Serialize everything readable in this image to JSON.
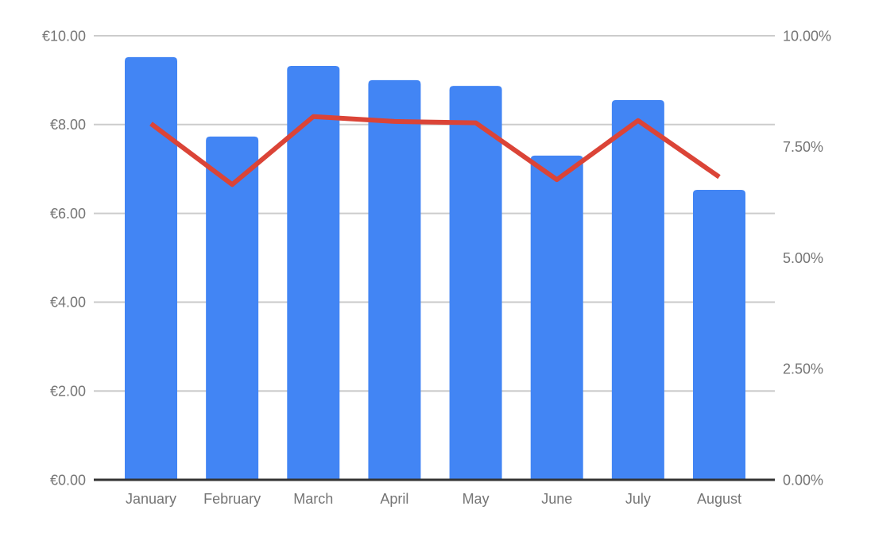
{
  "chart_data": {
    "type": "combo",
    "title": "",
    "legend": "none",
    "grid": true,
    "categories": [
      "January",
      "February",
      "March",
      "April",
      "May",
      "June",
      "July",
      "August"
    ],
    "series": [
      {
        "name": "bar-series-eur",
        "type": "bar",
        "axis": "left",
        "color": "#4285F4",
        "values": [
          9.52,
          7.73,
          9.32,
          9.0,
          8.87,
          7.3,
          8.55,
          6.53
        ]
      },
      {
        "name": "line-series-pct",
        "type": "line",
        "axis": "right",
        "color": "#DB4437",
        "values": [
          8.02,
          6.65,
          8.18,
          8.07,
          8.04,
          6.76,
          8.09,
          6.82
        ]
      }
    ],
    "left_axis": {
      "range": [
        0,
        10
      ],
      "ticks": [
        0,
        2,
        4,
        6,
        8,
        10
      ],
      "labels": [
        "€0.00",
        "€2.00",
        "€4.00",
        "€6.00",
        "€8.00",
        "€10.00"
      ]
    },
    "right_axis": {
      "range": [
        0,
        10
      ],
      "ticks": [
        0,
        2.5,
        5,
        7.5,
        10
      ],
      "labels": [
        "0.00%",
        "2.50%",
        "5.00%",
        "7.50%",
        "10.00%"
      ]
    },
    "colors": {
      "background": "#ffffff",
      "gridline": "#cccccc",
      "baseline": "#333333",
      "label_text": "#757575"
    }
  }
}
